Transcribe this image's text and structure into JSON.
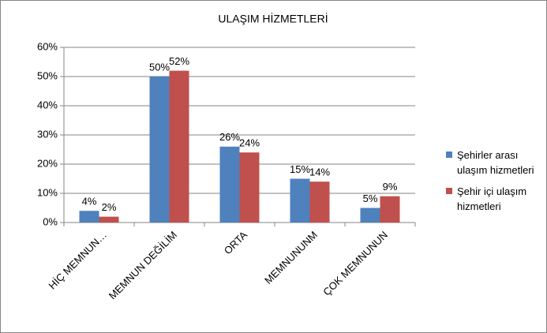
{
  "chart_data": {
    "type": "bar",
    "title": "ULAŞIM HİZMETLERİ",
    "categories": [
      "HİÇ MEMNUN…",
      "MEMNUN DEĞİLİM",
      "ORTA",
      "MEMNUNUNM",
      "ÇOK MEMNUNUN"
    ],
    "series": [
      {
        "name": "Şehirler arası ulaşım hizmetleri",
        "color": "#4f81bd",
        "values": [
          4,
          50,
          26,
          15,
          5
        ],
        "value_labels": [
          "4%",
          "50%",
          "26%",
          "15%",
          "5%"
        ]
      },
      {
        "name": "Şehir içi ulaşım hizmetleri",
        "color": "#c0504d",
        "values": [
          2,
          52,
          24,
          14,
          9
        ],
        "value_labels": [
          "2%",
          "52%",
          "24%",
          "14%",
          "9%"
        ]
      }
    ],
    "ylim": [
      0,
      60
    ],
    "yticks": [
      {
        "value": 0,
        "label": "0%"
      },
      {
        "value": 10,
        "label": "10%"
      },
      {
        "value": 20,
        "label": "20%"
      },
      {
        "value": 30,
        "label": "30%"
      },
      {
        "value": 40,
        "label": "40%"
      },
      {
        "value": 50,
        "label": "50%"
      },
      {
        "value": 60,
        "label": "60%"
      }
    ],
    "grid": true,
    "legend": "right"
  }
}
